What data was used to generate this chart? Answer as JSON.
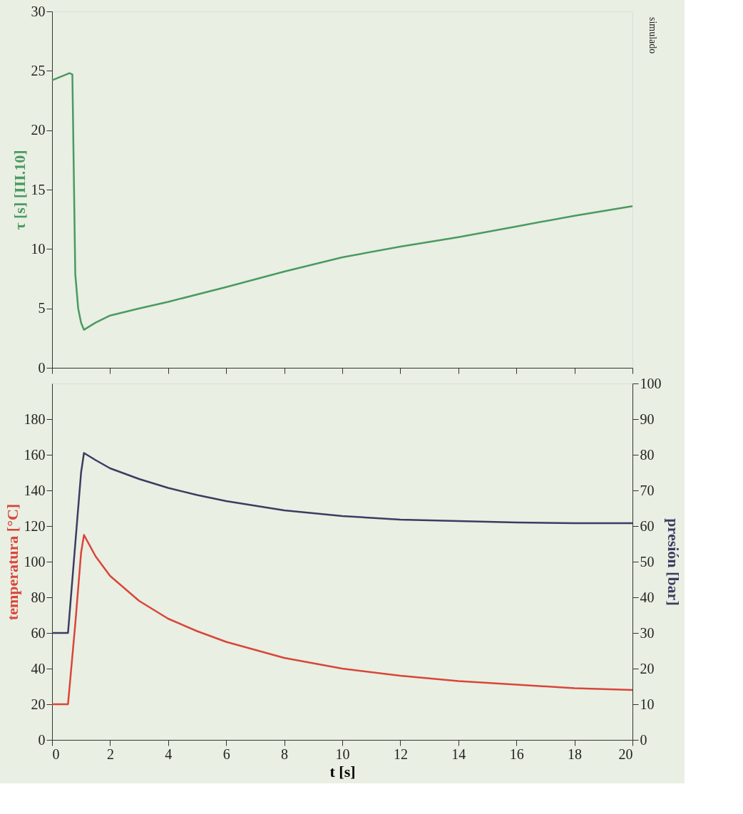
{
  "chart_data": [
    {
      "type": "line",
      "ylabel": "τ [s]  [III.10]",
      "annotations": [
        "simulado"
      ],
      "xlim": [
        0,
        20
      ],
      "xticks": [
        0,
        2,
        4,
        6,
        8,
        10,
        12,
        14,
        16,
        18,
        20
      ],
      "ylim": [
        0,
        30
      ],
      "yticks": [
        0,
        5,
        10,
        15,
        20,
        25,
        30
      ],
      "tick_labels": "y",
      "grid": false,
      "x": [
        0,
        0.3,
        0.6,
        0.7,
        0.8,
        0.9,
        1.0,
        1.1,
        1.5,
        2,
        3,
        4,
        6,
        8,
        10,
        12,
        14,
        16,
        18,
        20
      ],
      "series": [
        {
          "color": "#4a9a62",
          "values": [
            24.2,
            24.5,
            24.8,
            24.7,
            7.9,
            5.0,
            3.8,
            3.2,
            3.8,
            4.4,
            5.0,
            5.55,
            6.8,
            8.1,
            9.3,
            10.2,
            11.0,
            11.9,
            12.8,
            13.6
          ]
        }
      ]
    },
    {
      "type": "line",
      "xlabel": "t [s]",
      "ylabel": "temperatura [°C]",
      "y2label": "presión [bar]",
      "xlim": [
        0,
        20
      ],
      "xticks": [
        0,
        2,
        4,
        6,
        8,
        10,
        12,
        14,
        16,
        18,
        20
      ],
      "ylim": [
        0,
        200
      ],
      "yticks": [
        0,
        20,
        40,
        60,
        80,
        100,
        120,
        140,
        160,
        180
      ],
      "y2lim": [
        0,
        100
      ],
      "y2ticks": [
        0,
        10,
        20,
        30,
        40,
        50,
        60,
        70,
        80,
        90,
        100
      ],
      "grid": false,
      "x": [
        0,
        0.55,
        0.8,
        1.0,
        1.1,
        1.5,
        2,
        3,
        4,
        5,
        6,
        8,
        10,
        12,
        14,
        16,
        18,
        20
      ],
      "series": [
        {
          "color": "#d9453a",
          "values": [
            20,
            20,
            65,
            105,
            115,
            103,
            92,
            78,
            68,
            61,
            55,
            46,
            40,
            36,
            33,
            31,
            29,
            28
          ]
        },
        {
          "color": "#3b3c62",
          "axis": "y2",
          "values": [
            30,
            30,
            55,
            75,
            80.5,
            78.5,
            76.2,
            73.2,
            70.7,
            68.7,
            67,
            64.4,
            62.8,
            61.8,
            61.4,
            61,
            60.8,
            60.8
          ]
        }
      ]
    }
  ]
}
